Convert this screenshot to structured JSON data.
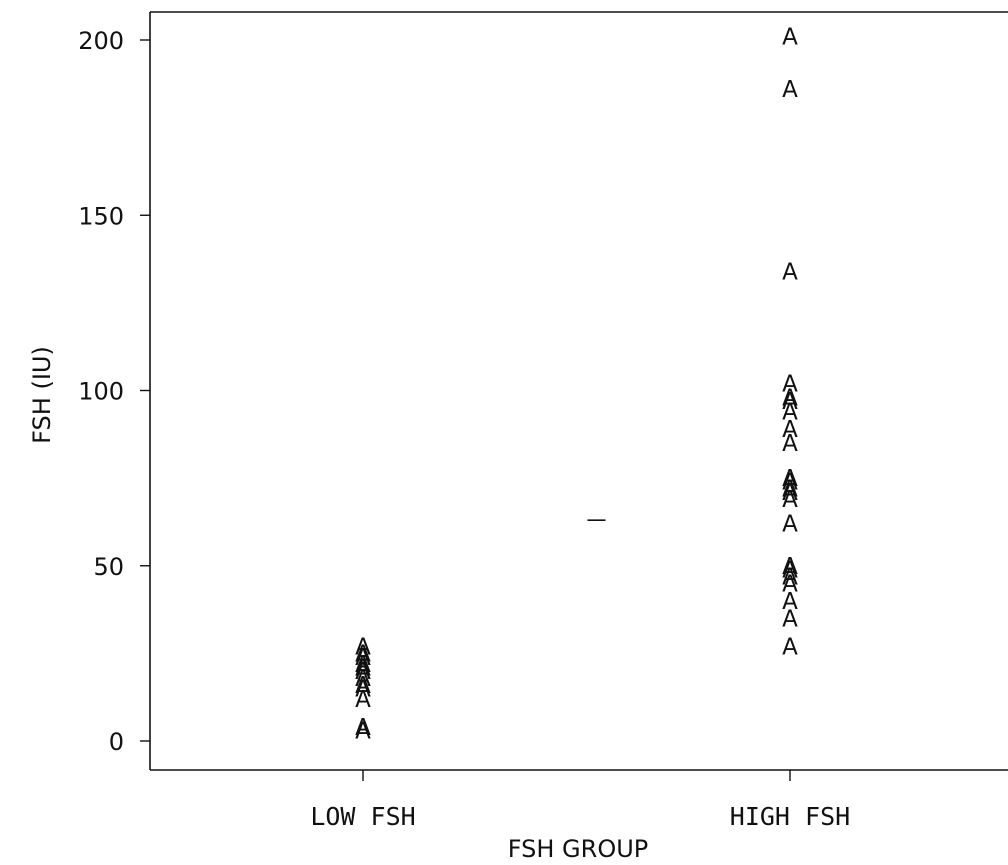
{
  "chart_data": {
    "type": "scatter",
    "title": "",
    "xlabel": "FSH GROUP",
    "ylabel": "FSH (IU)",
    "ylim": [
      0,
      200
    ],
    "yticks": [
      0,
      50,
      100,
      150,
      200
    ],
    "categories": [
      "LOW FSH",
      "HIGH FSH"
    ],
    "marker_symbol": "A",
    "series": [
      {
        "category": "LOW FSH",
        "values": [
          3,
          4,
          12,
          15,
          16,
          18,
          20,
          21,
          22,
          24,
          25,
          27
        ]
      },
      {
        "category": "HIGH FSH",
        "values": [
          27,
          35,
          40,
          45,
          47,
          49,
          50,
          62,
          69,
          71,
          72,
          74,
          75,
          85,
          89,
          94,
          97,
          98,
          102,
          134,
          186,
          201
        ]
      }
    ],
    "grid": false,
    "legend": "none",
    "annotations": [
      {
        "type": "dash-marker",
        "value": 63,
        "between": [
          "LOW FSH",
          "HIGH FSH"
        ]
      }
    ]
  }
}
